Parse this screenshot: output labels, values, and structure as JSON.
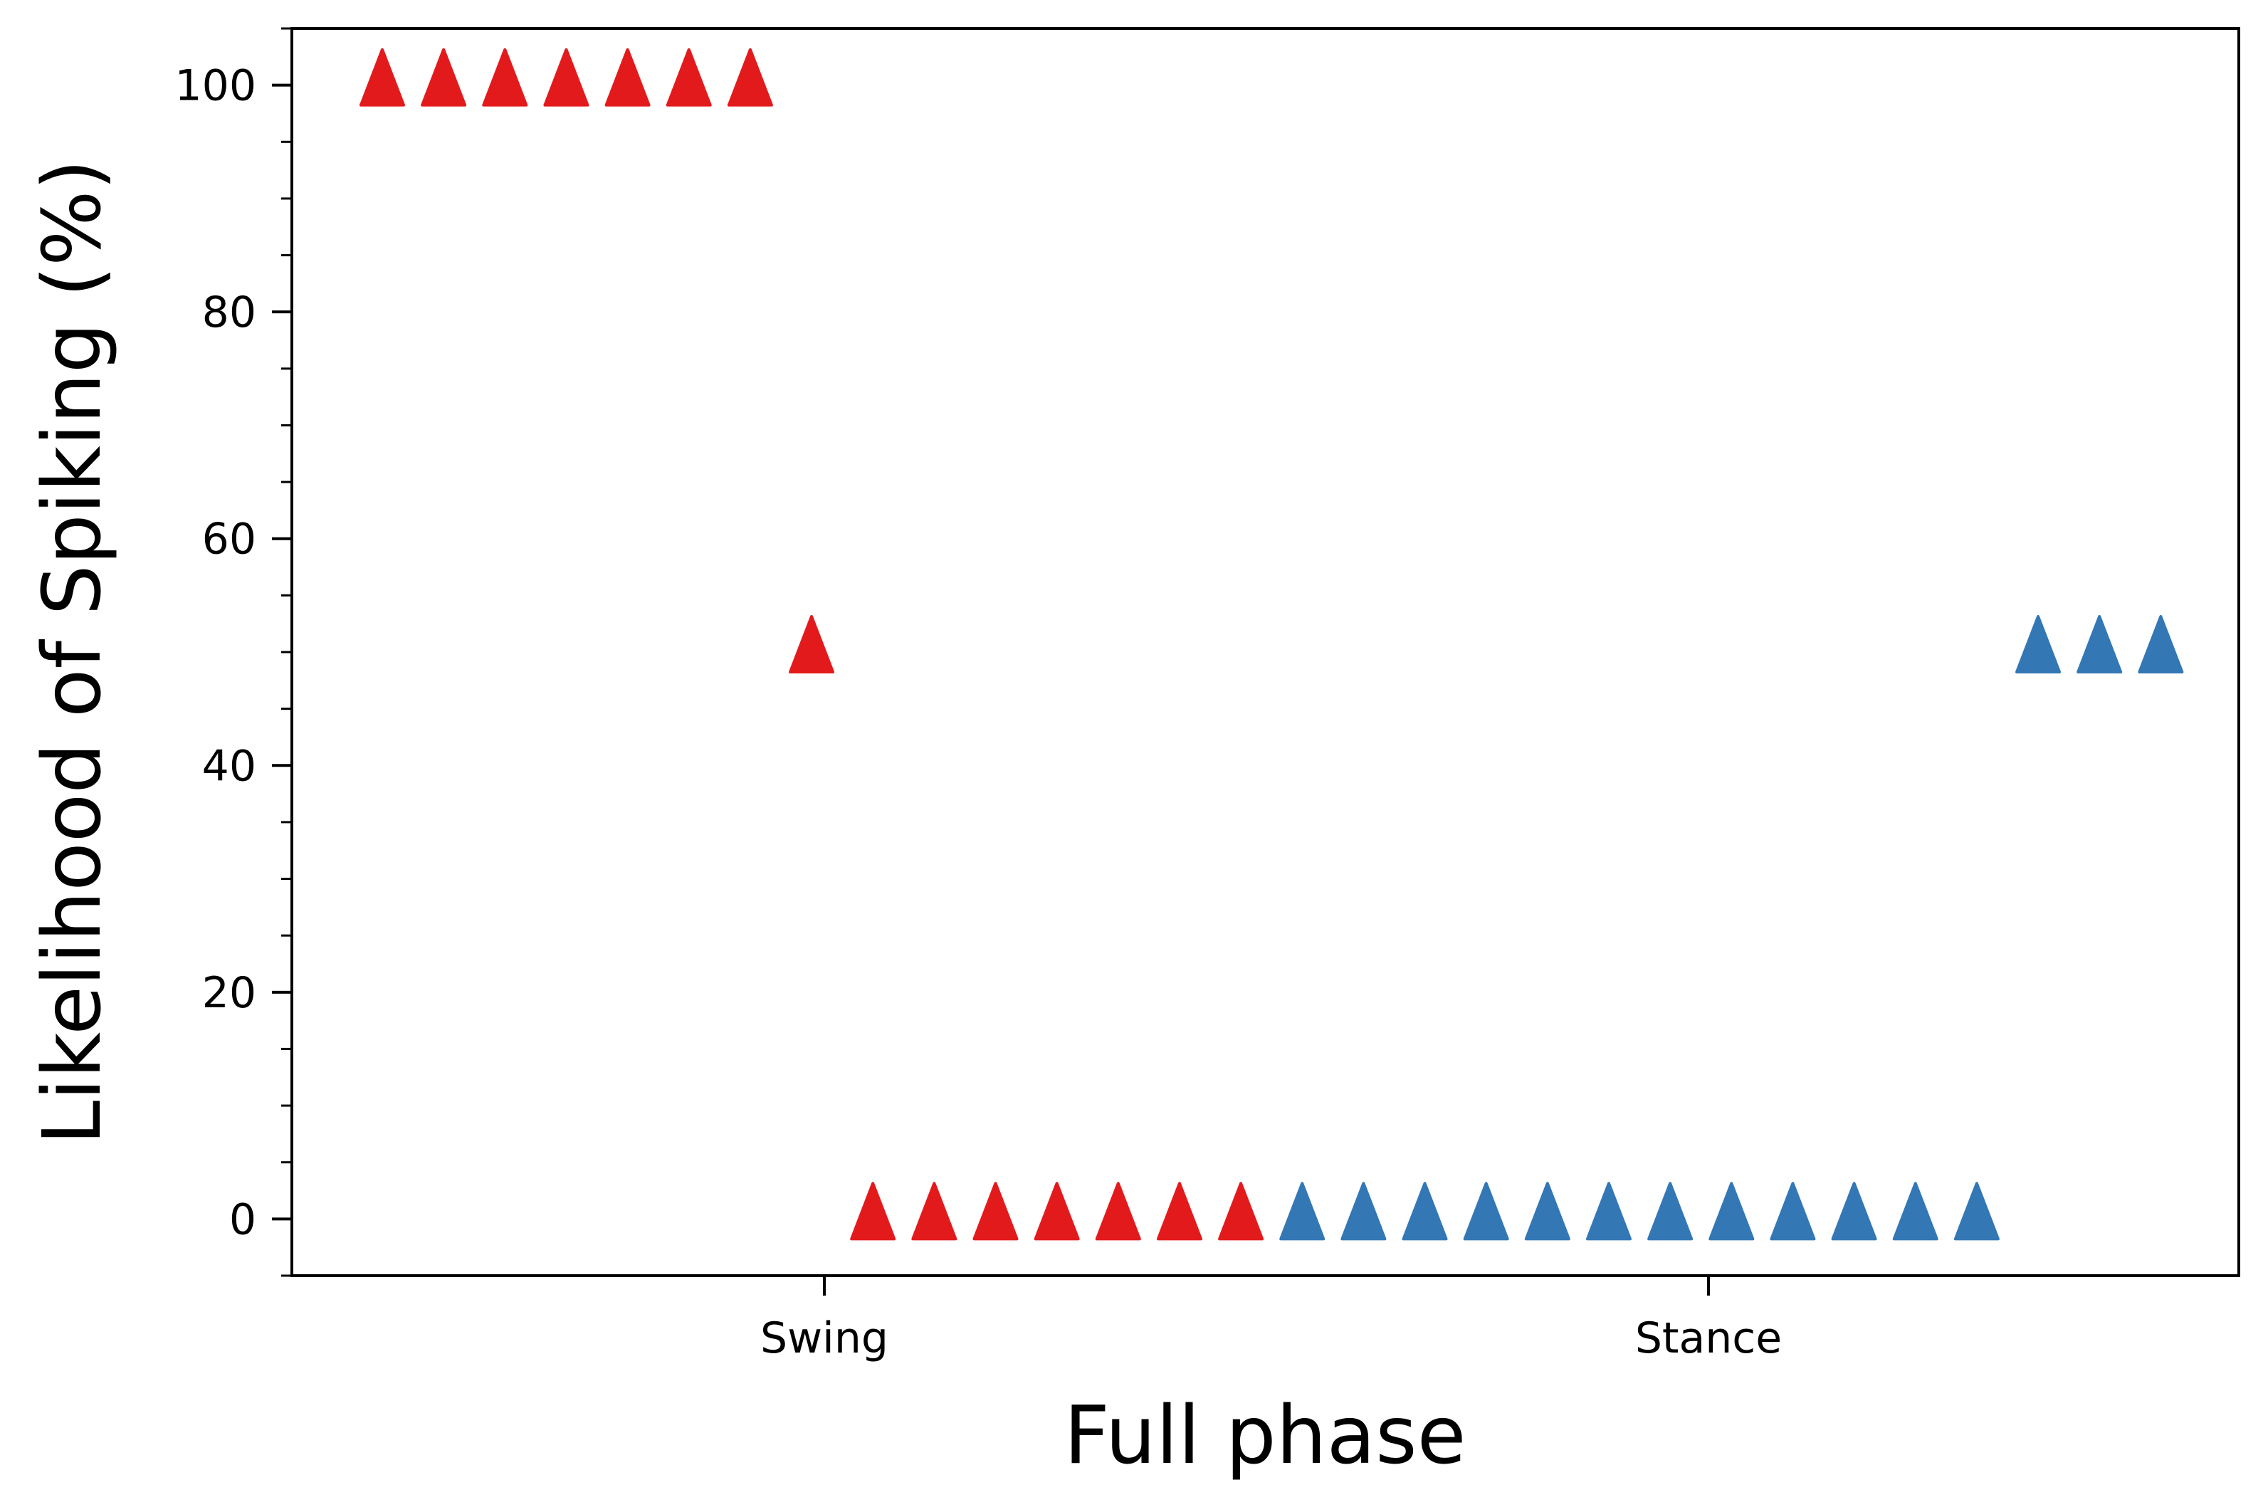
{
  "chart_data": {
    "type": "scatter",
    "title": "",
    "xlabel": "Full phase",
    "ylabel": "Likelihood of Spiking (%)",
    "x_categories": [
      "Swing",
      "Stance"
    ],
    "ylim": [
      -5,
      105
    ],
    "y_ticks": [
      0,
      20,
      40,
      60,
      80,
      100
    ],
    "y_tick_labels": [
      "0",
      "20",
      "40",
      "60",
      "80",
      "100"
    ],
    "grid": false,
    "legend": "none",
    "marker": "triangle-up",
    "series": [
      {
        "color": "#e31a1c",
        "points": [
          {
            "x": 1,
            "y": 100
          },
          {
            "x": 2,
            "y": 100
          },
          {
            "x": 3,
            "y": 100
          },
          {
            "x": 4,
            "y": 100
          },
          {
            "x": 5,
            "y": 100
          },
          {
            "x": 6,
            "y": 100
          },
          {
            "x": 7,
            "y": 100
          },
          {
            "x": 8,
            "y": 50
          },
          {
            "x": 9,
            "y": 0
          },
          {
            "x": 10,
            "y": 0
          },
          {
            "x": 11,
            "y": 0
          },
          {
            "x": 12,
            "y": 0
          },
          {
            "x": 13,
            "y": 0
          },
          {
            "x": 14,
            "y": 0
          },
          {
            "x": 15,
            "y": 0
          }
        ]
      },
      {
        "color": "#3377b5",
        "points": [
          {
            "x": 16,
            "y": 0
          },
          {
            "x": 17,
            "y": 0
          },
          {
            "x": 18,
            "y": 0
          },
          {
            "x": 19,
            "y": 0
          },
          {
            "x": 20,
            "y": 0
          },
          {
            "x": 21,
            "y": 0
          },
          {
            "x": 22,
            "y": 0
          },
          {
            "x": 23,
            "y": 0
          },
          {
            "x": 24,
            "y": 0
          },
          {
            "x": 25,
            "y": 0
          },
          {
            "x": 26,
            "y": 0
          },
          {
            "x": 27,
            "y": 0
          },
          {
            "x": 28,
            "y": 50
          },
          {
            "x": 29,
            "y": 50
          },
          {
            "x": 30,
            "y": 50
          }
        ]
      }
    ]
  }
}
